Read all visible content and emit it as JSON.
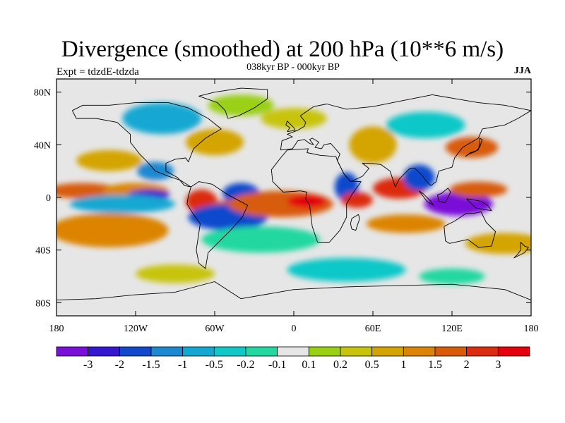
{
  "chart_data": {
    "type": "heatmap",
    "title": "Divergence (smoothed) at 200 hPa (10**6 m/s)",
    "subtitle": "038kyr BP - 000kyr BP",
    "left_label": "Expt = tdzdE-tdzda",
    "right_label": "JJA",
    "x_ticks": [
      "180",
      "120W",
      "60W",
      "0",
      "60E",
      "120E",
      "180"
    ],
    "x_tick_values": [
      -180,
      -120,
      -60,
      0,
      60,
      120,
      180
    ],
    "y_ticks": [
      "80N",
      "40N",
      "0",
      "40S",
      "80S"
    ],
    "y_tick_values": [
      80,
      40,
      0,
      -40,
      -80
    ],
    "xlim": [
      -180,
      180
    ],
    "ylim": [
      -90,
      90
    ],
    "colorbar": {
      "levels": [
        "-3",
        "-2",
        "-1.5",
        "-1",
        "-0.5",
        "-0.2",
        "-0.1",
        "0.1",
        "0.2",
        "0.5",
        "1",
        "1.5",
        "2",
        "3"
      ],
      "colors": [
        "#7a0fd8",
        "#3418d0",
        "#1148cc",
        "#1b88d0",
        "#12a8d2",
        "#10c8c8",
        "#22d8a0",
        "#e6e6e6",
        "#9ad014",
        "#c8c40c",
        "#d4a404",
        "#dc8404",
        "#d85c08",
        "#dc2c10",
        "#e4000c"
      ]
    },
    "regions": [
      {
        "lon": -160,
        "lat": 5,
        "rx": 28,
        "ry": 6,
        "level": 12
      },
      {
        "lon": -120,
        "lat": 5,
        "rx": 25,
        "ry": 6,
        "level": 11
      },
      {
        "lon": -110,
        "lat": 2,
        "rx": 16,
        "ry": 4,
        "level": 1
      },
      {
        "lon": -130,
        "lat": -5,
        "rx": 40,
        "ry": 7,
        "level": 4
      },
      {
        "lon": -105,
        "lat": 20,
        "rx": 14,
        "ry": 7,
        "level": 3
      },
      {
        "lon": -70,
        "lat": -3,
        "rx": 12,
        "ry": 9,
        "level": 13
      },
      {
        "lon": -50,
        "lat": -8,
        "rx": 14,
        "ry": 6,
        "level": 12
      },
      {
        "lon": -50,
        "lat": -15,
        "rx": 30,
        "ry": 10,
        "level": 2
      },
      {
        "lon": -40,
        "lat": 3,
        "rx": 14,
        "ry": 8,
        "level": 2
      },
      {
        "lon": -10,
        "lat": -5,
        "rx": 40,
        "ry": 10,
        "level": 12
      },
      {
        "lon": 10,
        "lat": -3,
        "rx": 15,
        "ry": 5,
        "level": 14
      },
      {
        "lon": 40,
        "lat": 8,
        "rx": 9,
        "ry": 11,
        "level": 2
      },
      {
        "lon": 48,
        "lat": -2,
        "rx": 12,
        "ry": 6,
        "level": 13
      },
      {
        "lon": 80,
        "lat": 7,
        "rx": 20,
        "ry": 8,
        "level": 13
      },
      {
        "lon": 95,
        "lat": 15,
        "rx": 12,
        "ry": 10,
        "level": 2
      },
      {
        "lon": 125,
        "lat": -5,
        "rx": 26,
        "ry": 9,
        "level": 0
      },
      {
        "lon": 140,
        "lat": 6,
        "rx": 22,
        "ry": 6,
        "level": 12
      },
      {
        "lon": -140,
        "lat": -25,
        "rx": 45,
        "ry": 13,
        "level": 11
      },
      {
        "lon": 85,
        "lat": -20,
        "rx": 30,
        "ry": 7,
        "level": 11
      },
      {
        "lon": 160,
        "lat": -35,
        "rx": 30,
        "ry": 8,
        "level": 10
      },
      {
        "lon": -25,
        "lat": -32,
        "rx": 45,
        "ry": 10,
        "level": 6
      },
      {
        "lon": -140,
        "lat": 28,
        "rx": 25,
        "ry": 8,
        "level": 10
      },
      {
        "lon": -60,
        "lat": 42,
        "rx": 22,
        "ry": 10,
        "level": 10
      },
      {
        "lon": 60,
        "lat": 40,
        "rx": 18,
        "ry": 14,
        "level": 10
      },
      {
        "lon": 135,
        "lat": 38,
        "rx": 20,
        "ry": 8,
        "level": 12
      },
      {
        "lon": -40,
        "lat": 70,
        "rx": 25,
        "ry": 8,
        "level": 8
      },
      {
        "lon": 0,
        "lat": 60,
        "rx": 25,
        "ry": 8,
        "level": 9
      },
      {
        "lon": 100,
        "lat": 55,
        "rx": 30,
        "ry": 10,
        "level": 5
      },
      {
        "lon": -100,
        "lat": 60,
        "rx": 30,
        "ry": 12,
        "level": 4
      },
      {
        "lon": 40,
        "lat": -55,
        "rx": 45,
        "ry": 9,
        "level": 5
      },
      {
        "lon": -90,
        "lat": -58,
        "rx": 30,
        "ry": 7,
        "level": 9
      },
      {
        "lon": 120,
        "lat": -60,
        "rx": 25,
        "ry": 6,
        "level": 6
      }
    ]
  }
}
